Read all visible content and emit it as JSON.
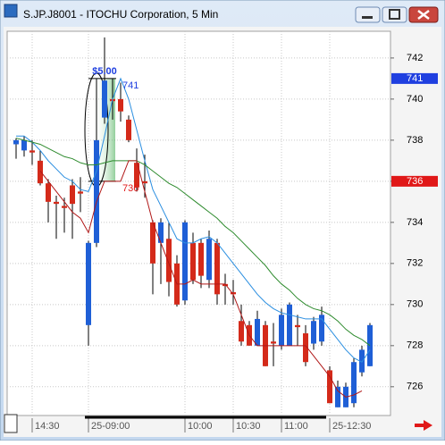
{
  "window_title": "S.JP.J8001 - ITOCHU Corporation, 5 Min",
  "chart_data": {
    "type": "candlestick",
    "categories": [
      null,
      null,
      "14:30",
      null,
      null,
      null,
      null,
      null,
      null,
      "25-09:00",
      null,
      null,
      null,
      null,
      null,
      null,
      null,
      null,
      null,
      null,
      null,
      "10:00",
      null,
      null,
      null,
      null,
      null,
      "10:30",
      null,
      null,
      null,
      null,
      null,
      "11:00",
      null,
      null,
      null,
      null,
      null,
      "25-12:30",
      null,
      null,
      null,
      null,
      null
    ],
    "open": [
      737.8,
      737.5,
      737.5,
      737.0,
      735.9,
      735.0,
      734.8,
      735.8,
      735.5,
      729.0,
      733.0,
      739.1,
      740.0,
      740.0,
      739.0,
      736.9,
      736.0,
      734.0,
      733.0,
      733.2,
      732.0,
      730.2,
      733.0,
      733.0,
      731.2,
      733.0,
      731.0,
      730.6,
      729.2,
      729.0,
      728.0,
      729.0,
      728.2,
      728.0,
      728.0,
      729.0,
      728.6,
      728.1,
      728.2,
      726.8,
      725.0,
      725.0,
      725.2,
      726.7,
      727.0
    ],
    "high": [
      738.1,
      738.2,
      738.0,
      737.5,
      736.1,
      735.3,
      735.2,
      736.1,
      736.2,
      733.1,
      741.0,
      743.0,
      741.0,
      740.8,
      739.2,
      737.6,
      737.3,
      734.1,
      734.2,
      734.0,
      732.4,
      734.1,
      733.5,
      733.2,
      733.6,
      733.2,
      731.5,
      731.2,
      730.0,
      729.2,
      729.7,
      729.2,
      729.1,
      729.8,
      730.1,
      729.5,
      729.0,
      729.4,
      729.9,
      727.0,
      726.3,
      726.2,
      727.4,
      728.0,
      729.1
    ],
    "low": [
      737.1,
      737.2,
      736.8,
      735.8,
      734.0,
      733.2,
      733.5,
      733.2,
      734.5,
      728.0,
      732.8,
      738.8,
      739.0,
      738.9,
      737.9,
      735.5,
      735.2,
      730.5,
      731.0,
      730.4,
      729.9,
      730.0,
      731.0,
      730.8,
      730.8,
      730.0,
      730.0,
      730.0,
      728.0,
      728.0,
      728.0,
      727.0,
      727.0,
      727.8,
      728.0,
      728.0,
      727.0,
      727.8,
      728.0,
      725.2,
      725.0,
      725.0,
      725.0,
      726.5,
      727.0
    ],
    "close": [
      738.0,
      738.0,
      737.4,
      735.9,
      735.0,
      734.9,
      734.7,
      734.9,
      735.4,
      733.0,
      738.0,
      740.9,
      739.9,
      739.4,
      738.0,
      735.7,
      735.9,
      732.0,
      734.0,
      731.1,
      730.0,
      734.0,
      731.2,
      731.4,
      733.2,
      730.5,
      730.9,
      730.5,
      728.2,
      728.0,
      729.3,
      727.0,
      728.1,
      729.5,
      730.0,
      728.9,
      727.2,
      729.2,
      729.5,
      725.2,
      726.0,
      726.0,
      727.2,
      727.8,
      729.0
    ],
    "up_color": "#1f5fd6",
    "down_color": "#d42a1a",
    "lines": [
      {
        "color": "#2a8ee0",
        "values": [
          738.2,
          738.2,
          737.9,
          737.5,
          737.0,
          736.6,
          736.2,
          736.0,
          735.6,
          735.5,
          736.5,
          738.2,
          740.0,
          741.0,
          740.0,
          738.5,
          737.0,
          735.6,
          734.8,
          734.0,
          733.2,
          733.0,
          733.0,
          733.2,
          733.3,
          733.0,
          732.5,
          732.0,
          731.5,
          731.0,
          730.5,
          730.1,
          729.8,
          729.6,
          729.5,
          729.4,
          729.3,
          729.3,
          729.3,
          728.8,
          728.3,
          727.8,
          727.4,
          727.2,
          727.8
        ]
      },
      {
        "color": "#2e8b2e",
        "values": [
          738.1,
          738.0,
          737.9,
          737.8,
          737.6,
          737.4,
          737.2,
          737.1,
          736.9,
          736.8,
          736.8,
          736.9,
          737.0,
          737.0,
          737.0,
          737.0,
          736.8,
          736.5,
          736.2,
          735.9,
          735.7,
          735.4,
          735.1,
          734.8,
          734.5,
          734.2,
          733.8,
          733.5,
          733.1,
          732.7,
          732.3,
          731.9,
          731.4,
          731.0,
          730.7,
          730.3,
          730.0,
          729.8,
          729.7,
          729.5,
          729.2,
          728.8,
          728.5,
          728.3,
          728.0
        ]
      },
      {
        "color": "#b01818",
        "values": [
          null,
          null,
          null,
          736.5,
          736.0,
          735.5,
          735.0,
          734.5,
          734.2,
          733.5,
          735.0,
          736.0,
          736.0,
          736.0,
          737.0,
          737.0,
          735.5,
          734.0,
          733.0,
          732.0,
          731.0,
          731.0,
          731.2,
          731.0,
          731.0,
          731.0,
          731.0,
          730.5,
          729.5,
          728.5,
          728.0,
          728.0,
          728.0,
          728.0,
          728.0,
          728.0,
          728.0,
          727.5,
          727.0,
          726.5,
          725.8,
          725.5,
          725.6,
          725.8,
          null
        ]
      }
    ],
    "ylim": [
      724.6,
      743.3
    ],
    "yticks": [
      726,
      728,
      730,
      732,
      734,
      736,
      738,
      740,
      742
    ],
    "grid": true,
    "annotation": "$5.00",
    "markers": [
      {
        "value": 741,
        "color": "#1f3fe0"
      },
      {
        "value": 736,
        "color": "#e01818"
      }
    ]
  }
}
